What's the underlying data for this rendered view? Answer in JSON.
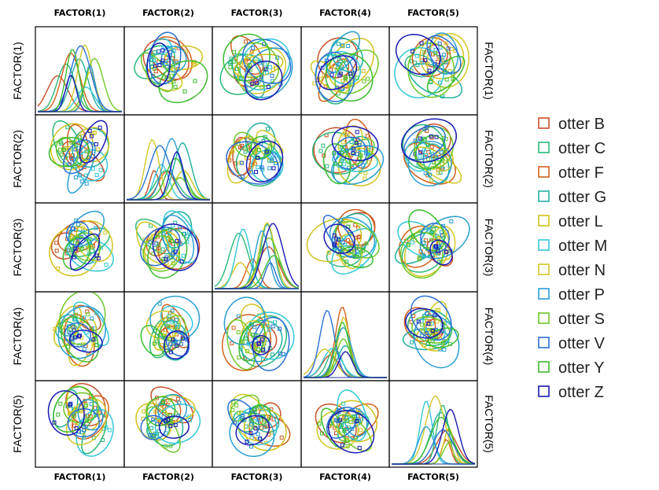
{
  "chart_data": {
    "type": "scatter",
    "subtype": "scatterplot-matrix",
    "variables": [
      "FACTOR(1)",
      "FACTOR(2)",
      "FACTOR(3)",
      "FACTOR(4)",
      "FACTOR(5)"
    ],
    "top_labels": [
      "FACTOR(1)",
      "FACTOR(2)",
      "FACTOR(3)",
      "FACTOR(4)",
      "FACTOR(5)"
    ],
    "bottom_labels": [
      "FACTOR(1)",
      "FACTOR(2)",
      "FACTOR(3)",
      "FACTOR(4)",
      "FACTOR(5)"
    ],
    "left_labels": [
      "FACTOR(1)",
      "FACTOR(2)",
      "FACTOR(3)",
      "FACTOR(4)",
      "FACTOR(5)"
    ],
    "right_labels": [
      "FACTOR(1)",
      "FACTOR(2)",
      "FACTOR(3)",
      "FACTOR(4)",
      "FACTOR(5)"
    ],
    "diagonal": "density",
    "off_diagonal": "scatter with confidence ellipses",
    "legend_position": "right",
    "grid": false,
    "legend": [
      {
        "name": "otter B",
        "color": "#c8502a"
      },
      {
        "name": "otter C",
        "color": "#2ab87a"
      },
      {
        "name": "otter F",
        "color": "#d2601c"
      },
      {
        "name": "otter G",
        "color": "#1fb0a0"
      },
      {
        "name": "otter L",
        "color": "#d2c21a"
      },
      {
        "name": "otter M",
        "color": "#33c8d8"
      },
      {
        "name": "otter N",
        "color": "#d2c828"
      },
      {
        "name": "otter P",
        "color": "#2a9ed2"
      },
      {
        "name": "otter S",
        "color": "#6fc828"
      },
      {
        "name": "otter V",
        "color": "#2a6fd6"
      },
      {
        "name": "otter Y",
        "color": "#3cbc30"
      },
      {
        "name": "otter Z",
        "color": "#1a1ab4"
      }
    ]
  }
}
